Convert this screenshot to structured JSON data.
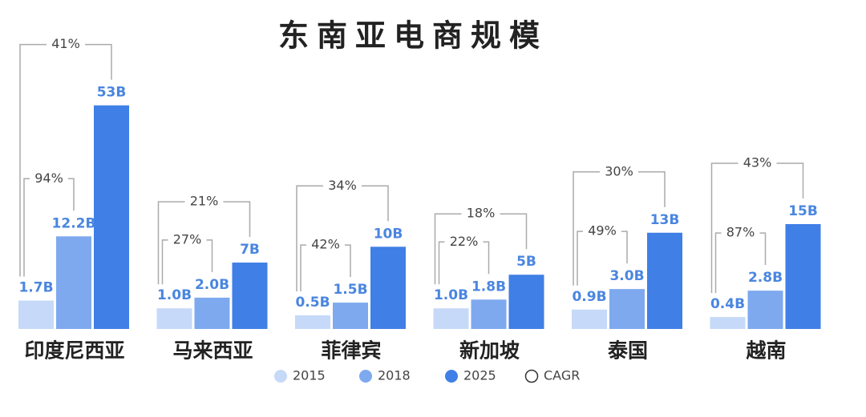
{
  "chart_data": {
    "type": "bar",
    "title": "东南亚电商规模",
    "categories": [
      "印度尼西亚",
      "马来西亚",
      "菲律宾",
      "新加坡",
      "泰国",
      "越南"
    ],
    "series": [
      {
        "name": "2015",
        "color": "#c6d9f8",
        "values": [
          1.7,
          1.0,
          0.5,
          1.0,
          0.9,
          0.4
        ],
        "value_labels": [
          "1.7B",
          "1.0B",
          "0.5B",
          "1.0B",
          "0.9B",
          "0.4B"
        ]
      },
      {
        "name": "2018",
        "color": "#7ea9ef",
        "values": [
          12.2,
          2.0,
          1.5,
          1.8,
          3.0,
          2.8
        ],
        "value_labels": [
          "12.2B",
          "2.0B",
          "1.5B",
          "1.8B",
          "3.0B",
          "2.8B"
        ]
      },
      {
        "name": "2025",
        "color": "#3f7fe6",
        "values": [
          53,
          7,
          10,
          5,
          13,
          15
        ],
        "value_labels": [
          "53B",
          "7B",
          "10B",
          "5B",
          "13B",
          "15B"
        ]
      }
    ],
    "cagr": {
      "name": "CAGR",
      "short": {
        "values": [
          94,
          27,
          42,
          22,
          49,
          87
        ],
        "value_labels": [
          "94%",
          "27%",
          "42%",
          "22%",
          "49%",
          "87%"
        ]
      },
      "long": {
        "values": [
          41,
          21,
          34,
          18,
          30,
          43
        ],
        "value_labels": [
          "41%",
          "21%",
          "34%",
          "18%",
          "30%",
          "43%"
        ]
      }
    },
    "legend": "bottom"
  }
}
